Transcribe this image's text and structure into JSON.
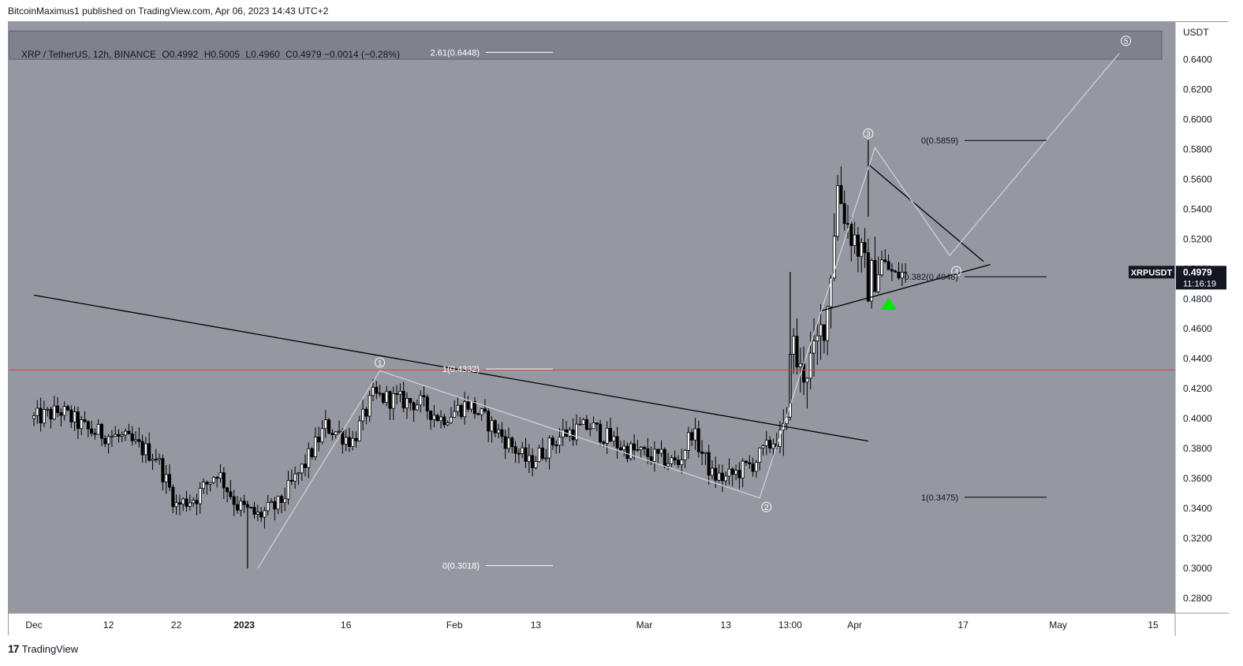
{
  "header": {
    "published": "BitcoinMaximus1 published on TradingView.com, Apr 06, 2023 14:43 UTC+2"
  },
  "legend": {
    "symbol": "XRP / TetherUS, 12h, BINANCE",
    "o_label": "O",
    "o": "0.4992",
    "h_label": "H",
    "h": "0.5005",
    "l_label": "L",
    "l": "0.4960",
    "c_label": "C",
    "c": "0.4979",
    "change": "−0.0014 (−0.28%)"
  },
  "footer": {
    "brand": "TradingView",
    "mark": "17"
  },
  "colors": {
    "plot_bg": "#9598a1",
    "candle": "#000000",
    "support": "#f23645",
    "wave": "#d1d4dc",
    "fib_line": "#ffffff",
    "signal": "#00e600",
    "zone": "#787b86"
  },
  "chart_data": {
    "type": "candlestick",
    "symbol": "XRPUSDT",
    "interval": "12h",
    "y_axis": {
      "unit": "USDT",
      "min": 0.27,
      "max": 0.665,
      "ticks": [
        "0.6400",
        "0.6200",
        "0.6000",
        "0.5800",
        "0.5600",
        "0.5400",
        "0.5200",
        "0.5000",
        "0.4800",
        "0.4600",
        "0.4400",
        "0.4200",
        "0.4000",
        "0.3800",
        "0.3600",
        "0.3400",
        "0.3200",
        "0.3000",
        "0.2800"
      ]
    },
    "x_axis": {
      "ticks": [
        {
          "label": "Dec",
          "day": 0
        },
        {
          "label": "12",
          "day": 11
        },
        {
          "label": "22",
          "day": 21
        },
        {
          "label": "2023",
          "day": 31
        },
        {
          "label": "16",
          "day": 46
        },
        {
          "label": "Feb",
          "day": 62
        },
        {
          "label": "13",
          "day": 74
        },
        {
          "label": "Mar",
          "day": 90
        },
        {
          "label": "13",
          "day": 102
        },
        {
          "label": "13:00",
          "day": 111.5
        },
        {
          "label": "Apr",
          "day": 121
        },
        {
          "label": "17",
          "day": 137
        },
        {
          "label": "May",
          "day": 151
        },
        {
          "label": "15",
          "day": 165
        }
      ]
    },
    "last_price": {
      "label": "XRPUSDT",
      "value": "0.4979",
      "countdown": "11:16:19"
    },
    "anchors": [
      {
        "day": 0,
        "price": 0.4
      },
      {
        "day": 4,
        "price": 0.405
      },
      {
        "day": 8,
        "price": 0.392
      },
      {
        "day": 13,
        "price": 0.387
      },
      {
        "day": 18,
        "price": 0.375
      },
      {
        "day": 21,
        "price": 0.342
      },
      {
        "day": 24,
        "price": 0.348
      },
      {
        "day": 27,
        "price": 0.365
      },
      {
        "day": 30,
        "price": 0.342
      },
      {
        "day": 33,
        "price": 0.335
      },
      {
        "day": 36,
        "price": 0.342
      },
      {
        "day": 40,
        "price": 0.37
      },
      {
        "day": 43,
        "price": 0.395
      },
      {
        "day": 47,
        "price": 0.385
      },
      {
        "day": 50,
        "price": 0.415
      },
      {
        "day": 57,
        "price": 0.41
      },
      {
        "day": 60,
        "price": 0.4
      },
      {
        "day": 64,
        "price": 0.41
      },
      {
        "day": 68,
        "price": 0.393
      },
      {
        "day": 73,
        "price": 0.37
      },
      {
        "day": 78,
        "price": 0.39
      },
      {
        "day": 82,
        "price": 0.395
      },
      {
        "day": 87,
        "price": 0.38
      },
      {
        "day": 91,
        "price": 0.375
      },
      {
        "day": 95,
        "price": 0.37
      },
      {
        "day": 97,
        "price": 0.392
      },
      {
        "day": 100,
        "price": 0.362
      },
      {
        "day": 102,
        "price": 0.36
      },
      {
        "day": 106,
        "price": 0.37
      },
      {
        "day": 109,
        "price": 0.385
      },
      {
        "day": 111,
        "price": 0.39
      },
      {
        "day": 111.5,
        "price": 0.455
      },
      {
        "day": 113,
        "price": 0.43
      },
      {
        "day": 115,
        "price": 0.44
      },
      {
        "day": 117,
        "price": 0.475
      },
      {
        "day": 118.5,
        "price": 0.555
      },
      {
        "day": 120,
        "price": 0.53
      },
      {
        "day": 121.5,
        "price": 0.515
      },
      {
        "day": 123,
        "price": 0.49
      },
      {
        "day": 125,
        "price": 0.505
      },
      {
        "day": 127,
        "price": 0.495
      },
      {
        "day": 128.5,
        "price": 0.498
      }
    ],
    "lines": {
      "resistance": {
        "from": {
          "day": 0,
          "price": 0.4825
        },
        "to": {
          "day": 123,
          "price": 0.385
        }
      },
      "triangle_upper": {
        "from": {
          "day": 123,
          "price": 0.57
        },
        "to": {
          "day": 140,
          "price": 0.505
        }
      },
      "triangle_lower": {
        "from": {
          "day": 116,
          "price": 0.472
        },
        "to": {
          "day": 141,
          "price": 0.503
        }
      },
      "support_price": 0.4325
    },
    "waves": [
      {
        "label": "1",
        "day": 51,
        "price": 0.4375
      },
      {
        "label": "2",
        "day": 108,
        "price": 0.341
      },
      {
        "label": "3",
        "day": 123,
        "price": 0.5905
      },
      {
        "label": "4",
        "day": 136,
        "price": 0.4985
      },
      {
        "label": "5",
        "day": 161,
        "price": 0.6525
      }
    ],
    "wave_path": [
      {
        "day": 33,
        "price": 0.3
      },
      {
        "day": 51,
        "price": 0.432
      },
      {
        "day": 107,
        "price": 0.347
      },
      {
        "day": 124,
        "price": 0.581
      },
      {
        "day": 135,
        "price": 0.509
      },
      {
        "day": 160,
        "price": 0.644
      }
    ],
    "fib_left": [
      {
        "label": "2.61(0.6448)",
        "price": 0.6448
      },
      {
        "label": "1(0.4332)",
        "price": 0.4332
      },
      {
        "label": "0(0.3018)",
        "price": 0.3018
      }
    ],
    "fib_right": [
      {
        "label": "0(0.5859)",
        "price": 0.5859
      },
      {
        "label": "0.382(0.4948)",
        "price": 0.4948
      },
      {
        "label": "1(0.3475)",
        "price": 0.3475
      }
    ],
    "signal": {
      "day": 126,
      "price": 0.477
    }
  }
}
